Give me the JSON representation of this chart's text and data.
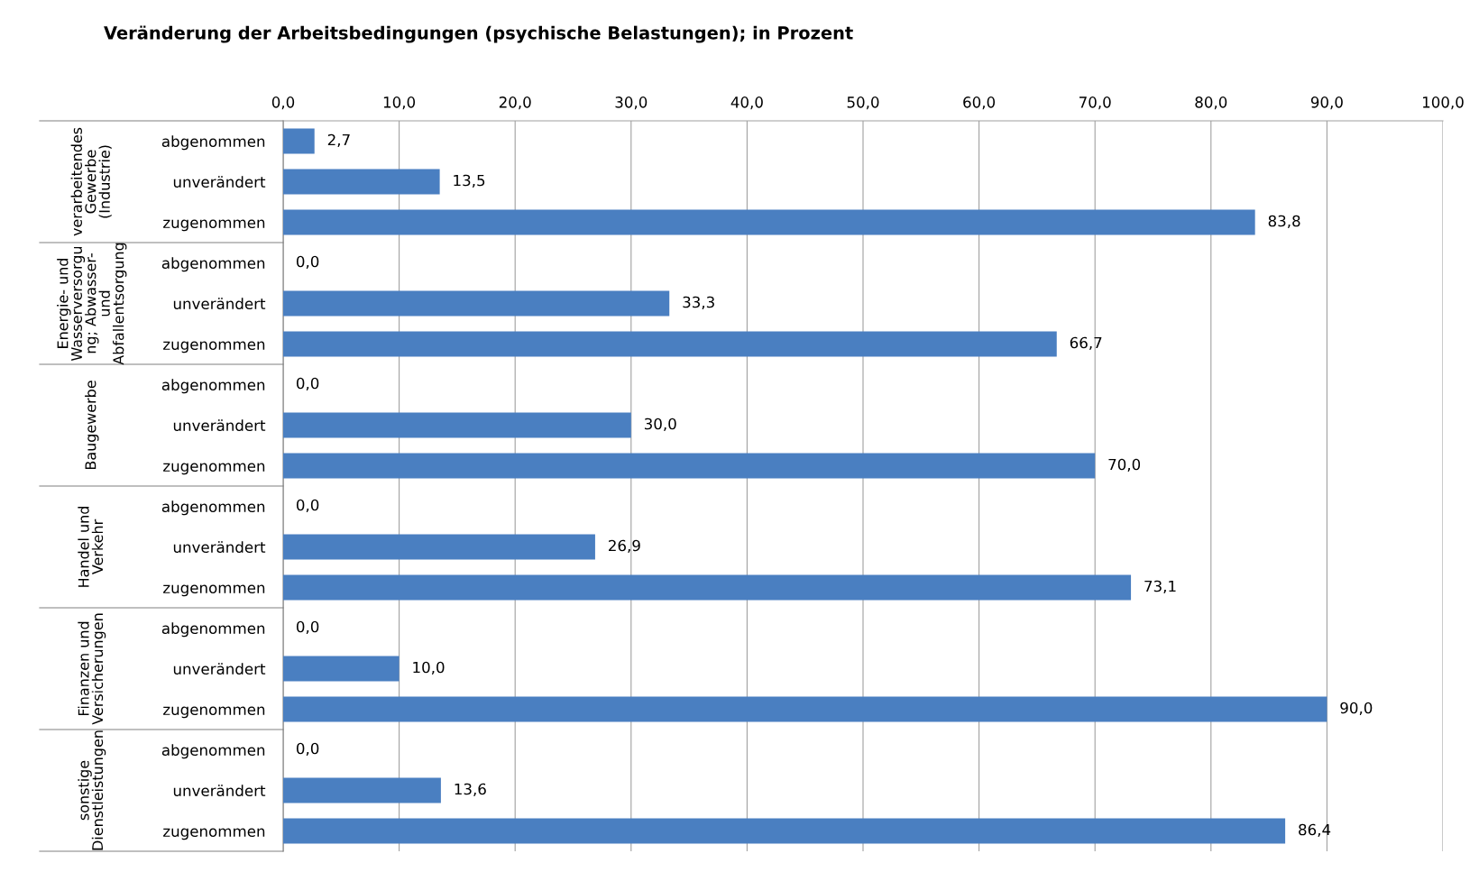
{
  "chart_data": {
    "type": "bar",
    "orientation": "horizontal",
    "title": "Veränderung der Arbeitsbedingungen (psychische Belastungen); in Prozent",
    "categories": [
      "abgenommen",
      "unverändert",
      "zugenommen",
      "abgenommen",
      "unverändert",
      "zugenommen",
      "abgenommen",
      "unverändert",
      "zugenommen",
      "abgenommen",
      "unverändert",
      "zugenommen",
      "abgenommen",
      "unverändert",
      "zugenommen",
      "abgenommen",
      "unverändert",
      "zugenommen"
    ],
    "values": [
      2.7,
      13.5,
      83.8,
      0.0,
      33.3,
      66.7,
      0.0,
      30.0,
      70.0,
      0.0,
      26.9,
      73.1,
      0.0,
      10.0,
      90.0,
      0.0,
      13.6,
      86.4
    ],
    "value_labels": [
      "2,7",
      "13,5",
      "83,8",
      "0,0",
      "33,3",
      "66,7",
      "0,0",
      "30,0",
      "70,0",
      "0,0",
      "26,9",
      "73,1",
      "0,0",
      "10,0",
      "90,0",
      "0,0",
      "13,6",
      "86,4"
    ],
    "color": "#4a7fc1",
    "annotations": [
      "verarbeitendes\nGewerbe\n(Industrie)",
      "Energie- und\nWasserversorgu\nng; Abwasser-\nund\nAbfallentsorgung",
      "Baugewerbe",
      "Handel und\nVerkehr",
      "Finanzen und\nVersicherungen",
      "sonstige\nDienstleistungen"
    ],
    "xlim": [
      0,
      100
    ],
    "xticks": [
      {
        "value": 0,
        "label": "0,0"
      },
      {
        "value": 10,
        "label": "10,0"
      },
      {
        "value": 20,
        "label": "20,0"
      },
      {
        "value": 30,
        "label": "30,0"
      },
      {
        "value": 40,
        "label": "40,0"
      },
      {
        "value": 50,
        "label": "50,0"
      },
      {
        "value": 60,
        "label": "60,0"
      },
      {
        "value": 70,
        "label": "70,0"
      },
      {
        "value": 80,
        "label": "80,0"
      },
      {
        "value": 90,
        "label": "90,0"
      },
      {
        "value": 100,
        "label": "100,0"
      }
    ],
    "grid": "x"
  }
}
